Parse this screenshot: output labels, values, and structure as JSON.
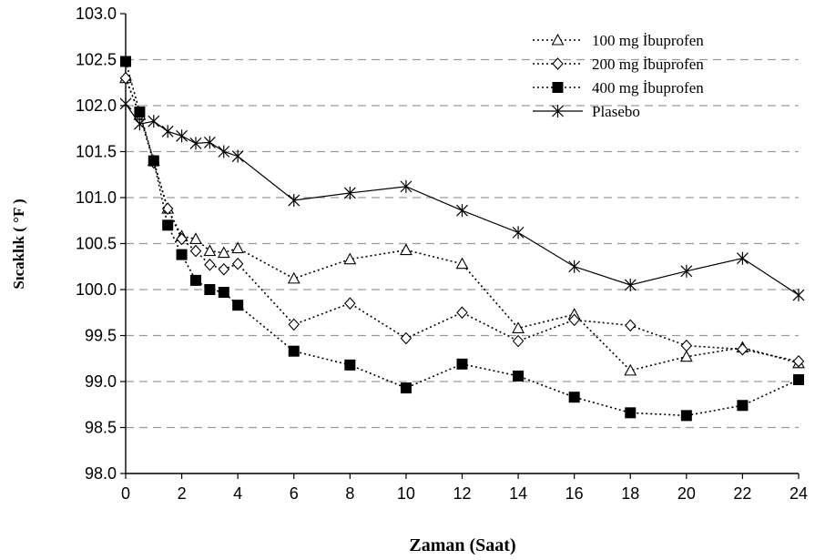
{
  "chart_data": {
    "type": "line",
    "title": "",
    "xlabel": "Zaman (Saat)",
    "ylabel": "Sıcaklık ( °F )",
    "xlim": [
      0,
      24
    ],
    "ylim": [
      98.0,
      103.0
    ],
    "x_ticks": [
      "0",
      "2",
      "4",
      "6",
      "8",
      "10",
      "12",
      "14",
      "16",
      "18",
      "20",
      "22",
      "24"
    ],
    "y_ticks": [
      "98.0",
      "98.5",
      "99.0",
      "99.5",
      "100.0",
      "100.5",
      "101.0",
      "101.5",
      "102.0",
      "102.5",
      "103.0"
    ],
    "grid": "horizontal dashed",
    "legend_position": "top-right",
    "series": [
      {
        "name": "100 mg İbuprofen",
        "marker": "triangle",
        "line": "dotted",
        "x": [
          0,
          0.5,
          1,
          1.5,
          2,
          2.5,
          3,
          3.5,
          4,
          6,
          8,
          10,
          12,
          14,
          16,
          18,
          20,
          22,
          24
        ],
        "y": [
          102.3,
          101.9,
          101.4,
          100.88,
          100.58,
          100.55,
          100.42,
          100.4,
          100.45,
          100.12,
          100.33,
          100.43,
          100.28,
          99.58,
          99.73,
          99.12,
          99.27,
          99.37,
          99.2
        ]
      },
      {
        "name": "200 mg İbuprofen",
        "marker": "diamond",
        "line": "dotted",
        "x": [
          0,
          0.5,
          1,
          1.5,
          2,
          2.5,
          3,
          3.5,
          4,
          6,
          8,
          10,
          12,
          14,
          16,
          18,
          20,
          22,
          24
        ],
        "y": [
          102.3,
          101.9,
          101.38,
          100.88,
          100.55,
          100.42,
          100.27,
          100.22,
          100.28,
          99.62,
          99.85,
          99.47,
          99.75,
          99.44,
          99.67,
          99.61,
          99.39,
          99.35,
          99.22
        ]
      },
      {
        "name": "400 mg İbuprofen",
        "marker": "square",
        "line": "dotted",
        "x": [
          0,
          0.5,
          1,
          1.5,
          2,
          2.5,
          3,
          3.5,
          4,
          6,
          8,
          10,
          12,
          14,
          16,
          18,
          20,
          22,
          24
        ],
        "y": [
          102.48,
          101.93,
          101.4,
          100.7,
          100.38,
          100.1,
          100.0,
          99.97,
          99.83,
          99.33,
          99.18,
          98.93,
          99.19,
          99.06,
          98.83,
          98.66,
          98.63,
          98.74,
          99.02
        ]
      },
      {
        "name": "Plasebo",
        "marker": "asterisk",
        "line": "solid",
        "x": [
          0,
          0.5,
          1,
          1.5,
          2,
          2.5,
          3,
          3.5,
          4,
          6,
          8,
          10,
          12,
          14,
          16,
          18,
          20,
          22,
          24
        ],
        "y": [
          102.02,
          101.8,
          101.83,
          101.72,
          101.67,
          101.59,
          101.6,
          101.5,
          101.45,
          100.97,
          101.05,
          101.12,
          100.86,
          100.62,
          100.25,
          100.05,
          100.2,
          100.34,
          99.94
        ]
      }
    ]
  }
}
